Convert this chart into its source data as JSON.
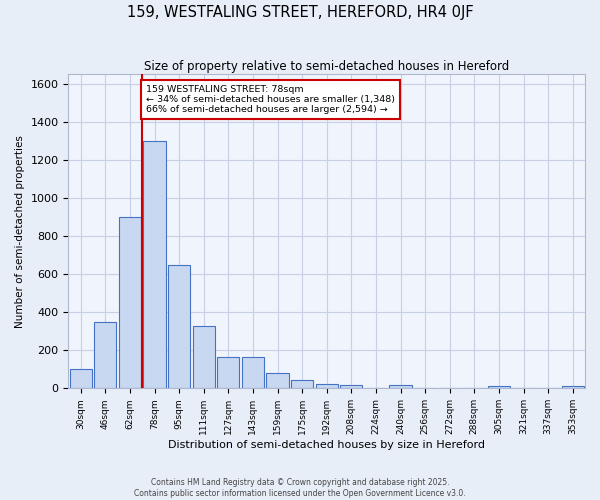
{
  "title": "159, WESTFALING STREET, HEREFORD, HR4 0JF",
  "subtitle": "Size of property relative to semi-detached houses in Hereford",
  "xlabel": "Distribution of semi-detached houses by size in Hereford",
  "ylabel": "Number of semi-detached properties",
  "categories": [
    "30sqm",
    "46sqm",
    "62sqm",
    "78sqm",
    "95sqm",
    "111sqm",
    "127sqm",
    "143sqm",
    "159sqm",
    "175sqm",
    "192sqm",
    "208sqm",
    "224sqm",
    "240sqm",
    "256sqm",
    "272sqm",
    "288sqm",
    "305sqm",
    "321sqm",
    "337sqm",
    "353sqm"
  ],
  "values": [
    100,
    350,
    900,
    1300,
    650,
    330,
    165,
    165,
    80,
    45,
    25,
    15,
    0,
    15,
    0,
    0,
    0,
    10,
    0,
    0,
    10
  ],
  "bar_color": "#c8d8f0",
  "bar_edge_color": "#4472c4",
  "red_line_index": 2.5,
  "annotation_title": "159 WESTFALING STREET: 78sqm",
  "annotation_line1": "← 34% of semi-detached houses are smaller (1,348)",
  "annotation_line2": "66% of semi-detached houses are larger (2,594) →",
  "annotation_color": "#cc0000",
  "ylim": [
    0,
    1650
  ],
  "yticks": [
    0,
    200,
    400,
    600,
    800,
    1000,
    1200,
    1400,
    1600
  ],
  "footer_line1": "Contains HM Land Registry data © Crown copyright and database right 2025.",
  "footer_line2": "Contains public sector information licensed under the Open Government Licence v3.0.",
  "bg_color": "#e8eef8",
  "plot_bg_color": "#f0f4fc",
  "grid_color": "#c8d0e8"
}
